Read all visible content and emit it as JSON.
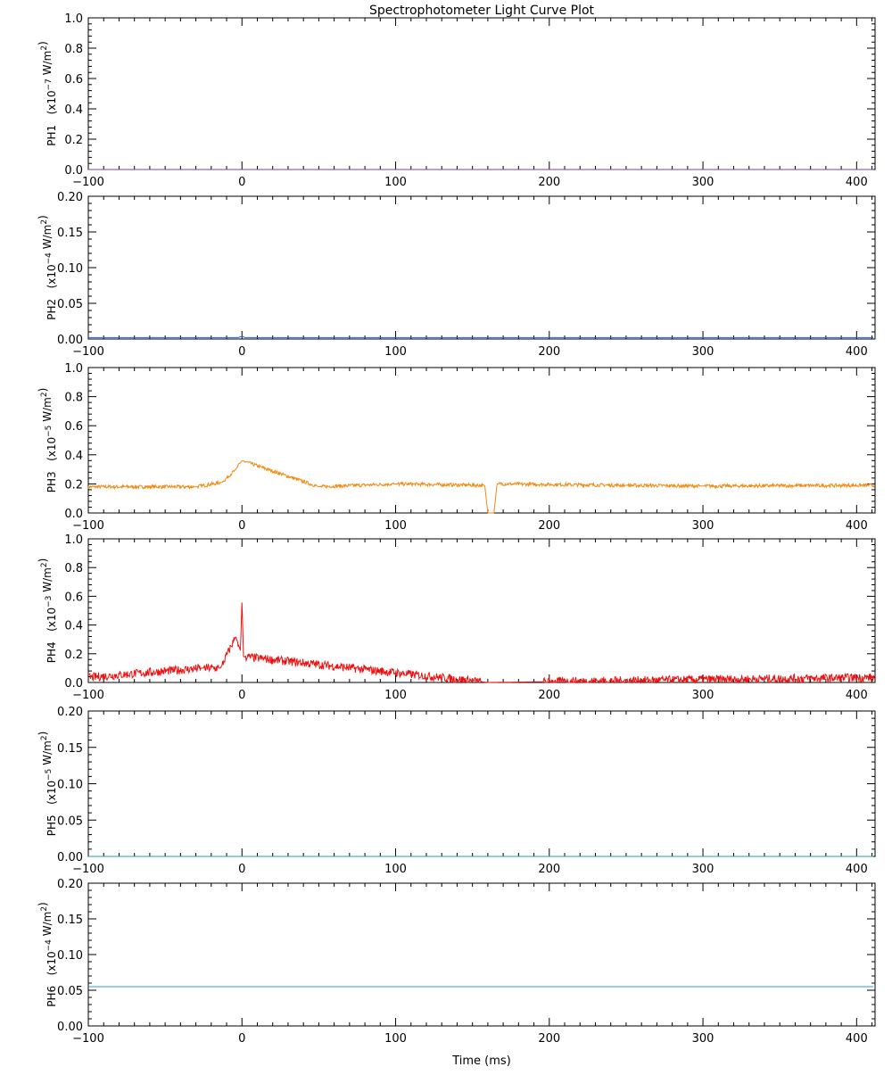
{
  "title": "Spectrophotometer Light Curve Plot",
  "xlabel": "Time (ms)",
  "chart_data": {
    "type": "line",
    "title": "Spectrophotometer Light Curve Plot",
    "xlabel": "Time (ms)",
    "xlim": [
      -100,
      412
    ],
    "xticks": [
      -100,
      0,
      100,
      200,
      300,
      400
    ],
    "xtick_labels": [
      "−100",
      "0",
      "100",
      "200",
      "300",
      "400"
    ],
    "panels": [
      {
        "id": "PH1",
        "channel": "PH1",
        "scale_base": "x10",
        "scale_exp": "−7",
        "unit_main": "W/m",
        "unit_exp": "2",
        "ylim": [
          0,
          1.0
        ],
        "yticks": [
          "0.0",
          "0.2",
          "0.4",
          "0.6",
          "0.8",
          "1.0"
        ],
        "ytick_values": [
          0,
          0.2,
          0.4,
          0.6,
          0.8,
          1.0
        ],
        "color": "#7b3fa0",
        "series": {
          "baseline": 0.0,
          "noise": 0.0,
          "points": [
            [
              -100,
              0
            ],
            [
              412,
              0
            ]
          ]
        }
      },
      {
        "id": "PH2",
        "channel": "PH2",
        "scale_base": "x10",
        "scale_exp": "−4",
        "unit_main": "W/m",
        "unit_exp": "2",
        "ylim": [
          0,
          0.2
        ],
        "yticks": [
          "0.00",
          "0.05",
          "0.10",
          "0.15",
          "0.20"
        ],
        "ytick_values": [
          0,
          0.05,
          0.1,
          0.15,
          0.2
        ],
        "color": "#1f5fd6",
        "series": {
          "baseline": 0.002,
          "noise": 0.0,
          "points": [
            [
              -100,
              0.002
            ],
            [
              -1,
              0.002
            ],
            [
              0,
              0.004
            ],
            [
              1,
              0.002
            ],
            [
              412,
              0.002
            ]
          ]
        }
      },
      {
        "id": "PH3",
        "channel": "PH3",
        "scale_base": "x10",
        "scale_exp": "−5",
        "unit_main": "W/m",
        "unit_exp": "2",
        "ylim": [
          0,
          1.0
        ],
        "yticks": [
          "0.0",
          "0.2",
          "0.4",
          "0.6",
          "0.8",
          "1.0"
        ],
        "ytick_values": [
          0,
          0.2,
          0.4,
          0.6,
          0.8,
          1.0
        ],
        "color": "#f08a10",
        "series": {
          "baseline": 0.18,
          "noise": 0.012,
          "points": [
            [
              -100,
              0.18
            ],
            [
              -30,
              0.18
            ],
            [
              -13,
              0.21
            ],
            [
              -4,
              0.3
            ],
            [
              0,
              0.36
            ],
            [
              50,
              0.18
            ],
            [
              100,
              0.2
            ],
            [
              158,
              0.19
            ],
            [
              160,
              0.0
            ],
            [
              164,
              0.0
            ],
            [
              166,
              0.2
            ],
            [
              250,
              0.19
            ],
            [
              300,
              0.185
            ],
            [
              412,
              0.19
            ]
          ]
        }
      },
      {
        "id": "PH4",
        "channel": "PH4",
        "scale_base": "x10",
        "scale_exp": "−3",
        "unit_main": "W/m",
        "unit_exp": "2",
        "ylim": [
          0,
          1.0
        ],
        "yticks": [
          "0.0",
          "0.2",
          "0.4",
          "0.6",
          "0.8",
          "1.0"
        ],
        "ytick_values": [
          0,
          0.2,
          0.4,
          0.6,
          0.8,
          1.0
        ],
        "color": "#ee1111",
        "series": {
          "baseline": 0.035,
          "noise": 0.03,
          "points": [
            [
              -100,
              0.035
            ],
            [
              -26,
              0.1
            ],
            [
              -14,
              0.1
            ],
            [
              -4,
              0.32
            ],
            [
              -1,
              0.22
            ],
            [
              0,
              0.57
            ],
            [
              1,
              0.18
            ],
            [
              160,
              0.0
            ],
            [
              412,
              0.035
            ]
          ]
        }
      },
      {
        "id": "PH5",
        "channel": "PH5",
        "scale_base": "x10",
        "scale_exp": "−5",
        "unit_main": "W/m",
        "unit_exp": "2",
        "ylim": [
          0,
          0.2
        ],
        "yticks": [
          "0.00",
          "0.05",
          "0.10",
          "0.15",
          "0.20"
        ],
        "ytick_values": [
          0,
          0.05,
          0.1,
          0.15,
          0.2
        ],
        "color": "#1aa0a0",
        "series": {
          "baseline": 0.0,
          "noise": 0.0,
          "points": [
            [
              -100,
              0
            ],
            [
              412,
              0
            ]
          ]
        }
      },
      {
        "id": "PH6",
        "channel": "PH6",
        "scale_base": "x10",
        "scale_exp": "−4",
        "unit_main": "W/m",
        "unit_exp": "2",
        "ylim": [
          0,
          0.2
        ],
        "yticks": [
          "0.00",
          "0.05",
          "0.10",
          "0.15",
          "0.20"
        ],
        "ytick_values": [
          0,
          0.05,
          0.1,
          0.15,
          0.2
        ],
        "color": "#2a9be0",
        "series": {
          "baseline": 0.055,
          "noise": 0.0,
          "points": [
            [
              -100,
              0.055
            ],
            [
              412,
              0.055
            ]
          ]
        }
      }
    ]
  }
}
